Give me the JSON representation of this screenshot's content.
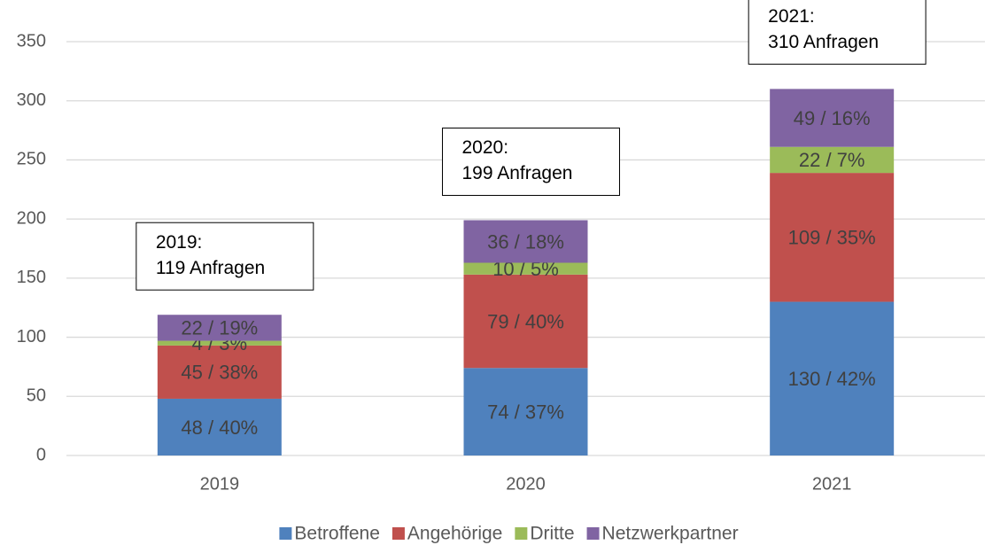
{
  "chart_data": {
    "type": "stacked_bar",
    "categories": [
      "2019",
      "2020",
      "2021"
    ],
    "series": [
      {
        "name": "Betroffene",
        "color": "#4f81bd",
        "values": [
          48,
          74,
          130
        ],
        "value_labels": [
          "48 / 40%",
          "74 / 37%",
          "130 / 42%"
        ]
      },
      {
        "name": "Angehörige",
        "color": "#c0504d",
        "values": [
          45,
          79,
          109
        ],
        "value_labels": [
          "45 / 38%",
          "79 / 40%",
          "109 / 35%"
        ]
      },
      {
        "name": "Dritte",
        "color": "#9bbb59",
        "values": [
          4,
          10,
          22
        ],
        "value_labels": [
          "4 / 3%",
          "10 / 5%",
          "22 / 7%"
        ]
      },
      {
        "name": "Netzwerkpartner",
        "color": "#8064a2",
        "values": [
          22,
          36,
          49
        ],
        "value_labels": [
          "22 / 19%",
          "36 / 18%",
          "49 / 16%"
        ]
      }
    ],
    "annotations": [
      {
        "lines": [
          "2019:",
          "119 Anfragen"
        ]
      },
      {
        "lines": [
          "2020:",
          "199 Anfragen"
        ]
      },
      {
        "lines": [
          "2021:",
          "310 Anfragen"
        ]
      }
    ],
    "ylim": [
      0,
      350
    ],
    "yticks": [
      0,
      50,
      100,
      150,
      200,
      250,
      300,
      350
    ],
    "grid": true,
    "legend": "bottom"
  }
}
